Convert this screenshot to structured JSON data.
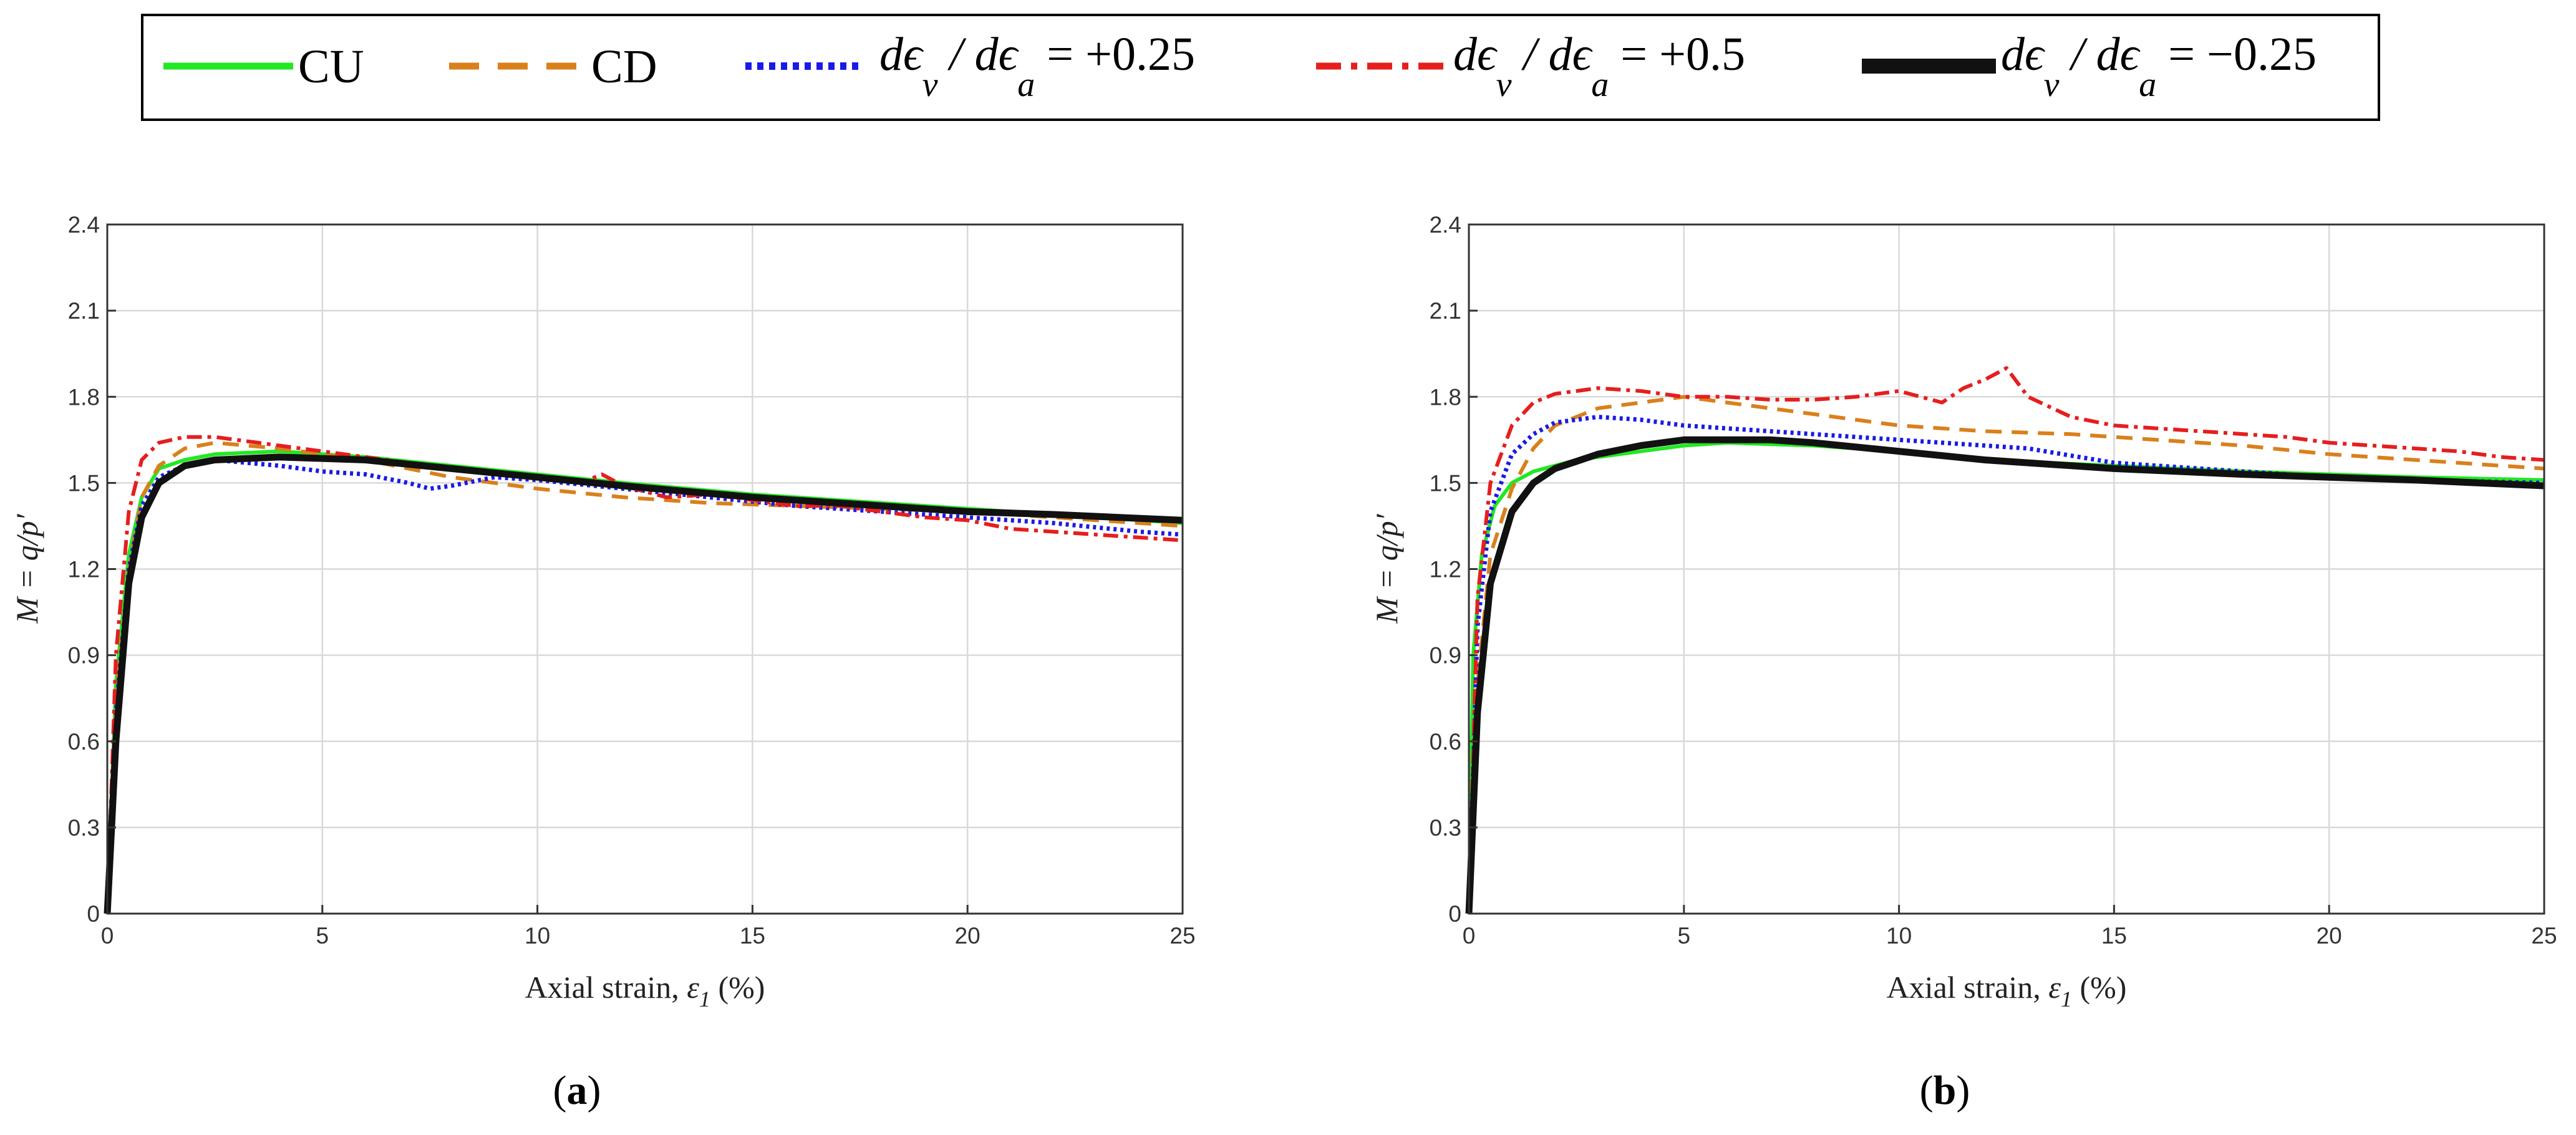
{
  "legend": {
    "items": [
      {
        "label": "CU",
        "color": "#22e822",
        "style": "solid"
      },
      {
        "label": "CD",
        "color": "#d9801c",
        "style": "dashed"
      },
      {
        "label": "dϵv / dϵa = +0.25",
        "math_lead": "dϵ",
        "sub1": "v",
        "mid": " / dϵ",
        "sub2": "a",
        "tail": " = +0.25",
        "color": "#1a1ae6",
        "style": "dotted"
      },
      {
        "label": "dϵv / dϵa = +0.5",
        "math_lead": "dϵ",
        "sub1": "v",
        "mid": " / dϵ",
        "sub2": "a",
        "tail": " = +0.5",
        "color": "#e61e1e",
        "style": "dashdot"
      },
      {
        "label": "dϵv / dϵa = −0.25",
        "math_lead": "dϵ",
        "sub1": "v",
        "mid": " / dϵ",
        "sub2": "a",
        "tail": " = −0.25",
        "color": "#111111",
        "style": "thick"
      }
    ]
  },
  "chart_data": [
    {
      "type": "line",
      "panel_label": "(a)",
      "panel_label_parts": {
        "open": "(",
        "letter": "a",
        "close": ")"
      },
      "xlabel": "Axial strain, ε1 (%)",
      "xlabel_parts": {
        "lead": "Axial strain, ",
        "sym": "ε",
        "sub": "1",
        "tail": " (%)"
      },
      "ylabel": "M = q/p′",
      "xlim": [
        0,
        25
      ],
      "ylim": [
        0,
        2.4
      ],
      "xticks": [
        0,
        5,
        10,
        15,
        20,
        25
      ],
      "yticks": [
        0,
        0.3,
        0.6,
        0.9,
        1.2,
        1.5,
        1.8,
        2.1,
        2.4
      ],
      "xtick_labels": [
        "0",
        "5",
        "10",
        "15",
        "20",
        "25"
      ],
      "ytick_labels": [
        "0",
        "0.3",
        "0.6",
        "0.9",
        "1.2",
        "1.5",
        "1.8",
        "2.1",
        "2.4"
      ],
      "grid": true,
      "series": [
        {
          "name": "CU",
          "x": [
            0,
            0.2,
            0.5,
            0.8,
            1.2,
            1.8,
            2.5,
            4,
            6,
            8,
            10,
            12,
            15,
            18,
            20,
            22,
            25
          ],
          "y": [
            0,
            0.8,
            1.25,
            1.45,
            1.55,
            1.58,
            1.6,
            1.61,
            1.59,
            1.56,
            1.53,
            1.5,
            1.46,
            1.43,
            1.41,
            1.39,
            1.36
          ]
        },
        {
          "name": "CD",
          "x": [
            0,
            0.2,
            0.5,
            0.8,
            1.2,
            1.8,
            2.5,
            4,
            6,
            8,
            10,
            12,
            14,
            16,
            18,
            20,
            22,
            25
          ],
          "y": [
            0,
            0.75,
            1.2,
            1.45,
            1.56,
            1.62,
            1.64,
            1.62,
            1.58,
            1.52,
            1.48,
            1.45,
            1.43,
            1.42,
            1.41,
            1.4,
            1.38,
            1.35
          ]
        },
        {
          "name": "dev/dea = +0.25",
          "x": [
            0,
            0.2,
            0.5,
            0.8,
            1.2,
            1.8,
            2.5,
            4,
            5,
            6,
            7,
            7.5,
            8,
            9,
            10,
            12,
            14,
            16,
            18,
            20,
            22,
            24,
            25
          ],
          "y": [
            0,
            0.7,
            1.2,
            1.42,
            1.52,
            1.56,
            1.58,
            1.56,
            1.54,
            1.53,
            1.5,
            1.48,
            1.49,
            1.52,
            1.51,
            1.48,
            1.45,
            1.42,
            1.4,
            1.38,
            1.36,
            1.33,
            1.32
          ]
        },
        {
          "name": "dev/dea = +0.5",
          "x": [
            0,
            0.2,
            0.5,
            0.8,
            1.2,
            1.8,
            2.5,
            3.5,
            5,
            7,
            9,
            11,
            11.5,
            12,
            13,
            14,
            15,
            16,
            17,
            18,
            19,
            20,
            21,
            22,
            23,
            24,
            25
          ],
          "y": [
            0,
            0.9,
            1.4,
            1.58,
            1.64,
            1.66,
            1.66,
            1.64,
            1.61,
            1.57,
            1.53,
            1.5,
            1.53,
            1.49,
            1.45,
            1.46,
            1.44,
            1.42,
            1.42,
            1.4,
            1.38,
            1.37,
            1.34,
            1.33,
            1.32,
            1.31,
            1.3
          ]
        },
        {
          "name": "dev/dea = -0.25",
          "x": [
            0,
            0.2,
            0.5,
            0.8,
            1.2,
            1.8,
            2.5,
            4,
            6,
            8,
            10,
            12,
            15,
            18,
            20,
            22,
            25
          ],
          "y": [
            0,
            0.6,
            1.15,
            1.38,
            1.5,
            1.56,
            1.58,
            1.59,
            1.58,
            1.55,
            1.52,
            1.49,
            1.45,
            1.42,
            1.4,
            1.39,
            1.37
          ]
        }
      ]
    },
    {
      "type": "line",
      "panel_label": "(b)",
      "panel_label_parts": {
        "open": "(",
        "letter": "b",
        "close": ")"
      },
      "xlabel": "Axial strain, ε1 (%)",
      "xlabel_parts": {
        "lead": "Axial strain, ",
        "sym": "ε",
        "sub": "1",
        "tail": " (%)"
      },
      "ylabel": "M = q/p′",
      "xlim": [
        0,
        25
      ],
      "ylim": [
        0,
        2.4
      ],
      "xticks": [
        0,
        5,
        10,
        15,
        20,
        25
      ],
      "yticks": [
        0,
        0.3,
        0.6,
        0.9,
        1.2,
        1.5,
        1.8,
        2.1,
        2.4
      ],
      "xtick_labels": [
        "0",
        "5",
        "10",
        "15",
        "20",
        "25"
      ],
      "ytick_labels": [
        "0",
        "0.3",
        "0.6",
        "0.9",
        "1.2",
        "1.5",
        "1.8",
        "2.1",
        "2.4"
      ],
      "grid": true,
      "series": [
        {
          "name": "CU",
          "x": [
            0,
            0.1,
            0.3,
            0.6,
            1,
            1.5,
            2.5,
            4,
            5,
            6,
            8,
            10,
            12,
            15,
            18,
            20,
            22,
            25
          ],
          "y": [
            0,
            0.9,
            1.25,
            1.42,
            1.5,
            1.54,
            1.58,
            1.61,
            1.63,
            1.64,
            1.63,
            1.61,
            1.58,
            1.56,
            1.54,
            1.53,
            1.52,
            1.51
          ]
        },
        {
          "name": "CD",
          "x": [
            0,
            0.2,
            0.5,
            1,
            1.5,
            2,
            3,
            4,
            5,
            6,
            8,
            10,
            12,
            14,
            16,
            18,
            20,
            22,
            25
          ],
          "y": [
            0,
            0.8,
            1.25,
            1.48,
            1.62,
            1.7,
            1.76,
            1.78,
            1.8,
            1.78,
            1.74,
            1.7,
            1.68,
            1.67,
            1.65,
            1.63,
            1.6,
            1.58,
            1.55
          ]
        },
        {
          "name": "dev/dea = +0.25",
          "x": [
            0,
            0.2,
            0.5,
            1,
            1.5,
            2,
            3,
            4,
            5,
            6,
            8,
            10,
            12,
            13,
            15,
            18,
            20,
            22,
            25
          ],
          "y": [
            0,
            1.0,
            1.4,
            1.6,
            1.67,
            1.71,
            1.73,
            1.72,
            1.7,
            1.69,
            1.67,
            1.65,
            1.63,
            1.62,
            1.57,
            1.54,
            1.52,
            1.51,
            1.5
          ]
        },
        {
          "name": "dev/dea = +0.5",
          "x": [
            0,
            0.2,
            0.5,
            1,
            1.5,
            2,
            3,
            4,
            5,
            6,
            7,
            8,
            9,
            10,
            11,
            11.5,
            12,
            12.5,
            13,
            14,
            15,
            16,
            17,
            18,
            19,
            20,
            21,
            22,
            23,
            24,
            25
          ],
          "y": [
            0,
            1.1,
            1.5,
            1.7,
            1.78,
            1.81,
            1.83,
            1.82,
            1.8,
            1.8,
            1.79,
            1.79,
            1.8,
            1.82,
            1.78,
            1.83,
            1.86,
            1.9,
            1.8,
            1.73,
            1.7,
            1.69,
            1.68,
            1.67,
            1.66,
            1.64,
            1.63,
            1.62,
            1.61,
            1.59,
            1.58
          ]
        },
        {
          "name": "dev/dea = -0.25",
          "x": [
            0,
            0.2,
            0.5,
            1,
            1.5,
            2,
            3,
            4,
            5,
            6,
            7,
            8,
            10,
            12,
            15,
            18,
            20,
            22,
            25
          ],
          "y": [
            0,
            0.7,
            1.15,
            1.4,
            1.5,
            1.55,
            1.6,
            1.63,
            1.65,
            1.65,
            1.65,
            1.64,
            1.61,
            1.58,
            1.55,
            1.53,
            1.52,
            1.51,
            1.49
          ]
        }
      ]
    }
  ]
}
